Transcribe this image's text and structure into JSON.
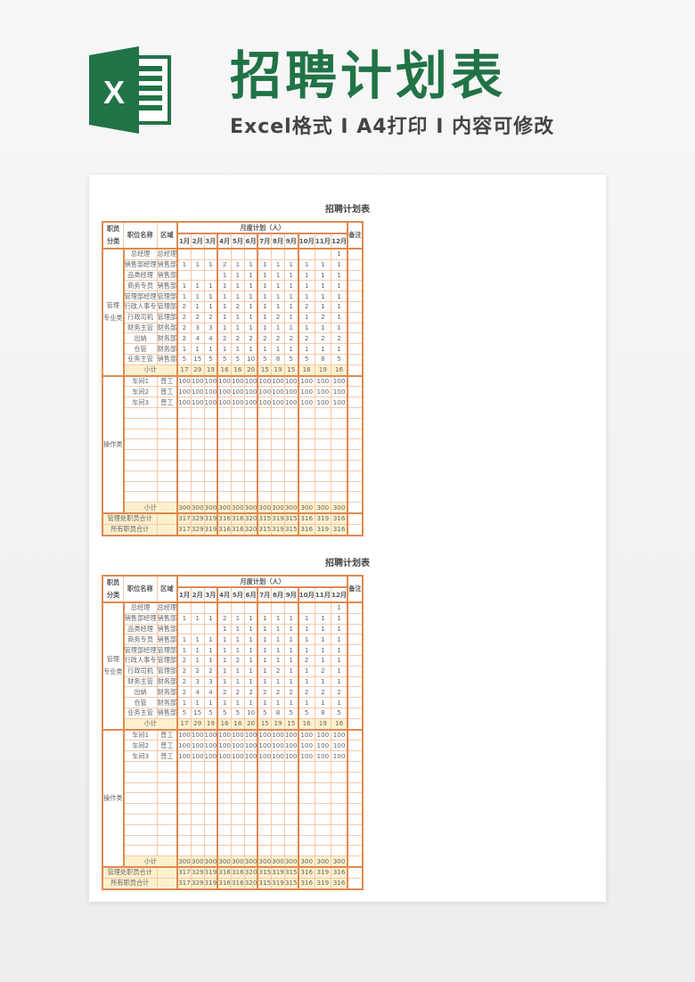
{
  "banner": {
    "logo_letter": "X",
    "headline": "招聘计划表",
    "subline": "Excel格式 I A4打印 I 内容可修改",
    "brand_color": "#217346"
  },
  "colors": {
    "border": "#e08a50",
    "grid": "#f5c9a8",
    "subtotal_fill": "#fdf1cd"
  },
  "sheets": [
    {
      "title": "招聘计划表",
      "header": {
        "category_l1": "职员",
        "category_l2": "分类",
        "position": "职位名称",
        "region": "区域",
        "monthly": "月度计划（人）",
        "months": [
          "1月",
          "2月",
          "3月",
          "4月",
          "5月",
          "6月",
          "7月",
          "8月",
          "9月",
          "10月",
          "11月",
          "12月"
        ],
        "remark": "备注"
      },
      "mgmt": {
        "category_l1": "管理",
        "category_l2": "专业类",
        "rows": [
          {
            "position": "总经理",
            "region": "总经理",
            "values": [
              "",
              "",
              "",
              "",
              "",
              "",
              "",
              "",
              "",
              "",
              "",
              "1"
            ]
          },
          {
            "position": "销售部经理",
            "region": "销售部",
            "values": [
              "1",
              "1",
              "1",
              "2",
              "1",
              "1",
              "1",
              "1",
              "1",
              "1",
              "1",
              "1"
            ]
          },
          {
            "position": "品类经理",
            "region": "销售部",
            "values": [
              "",
              "",
              "",
              "1",
              "1",
              "1",
              "1",
              "1",
              "1",
              "1",
              "1",
              "1"
            ]
          },
          {
            "position": "商务专员",
            "region": "销售部",
            "values": [
              "1",
              "1",
              "1",
              "1",
              "1",
              "1",
              "1",
              "1",
              "1",
              "1",
              "1",
              "1"
            ]
          },
          {
            "position": "管理部经理",
            "region": "管理部",
            "values": [
              "1",
              "1",
              "1",
              "1",
              "1",
              "1",
              "1",
              "1",
              "1",
              "1",
              "1",
              "1"
            ]
          },
          {
            "position": "行政人事专",
            "region": "管理部",
            "values": [
              "2",
              "1",
              "1",
              "1",
              "2",
              "1",
              "1",
              "1",
              "1",
              "2",
              "1",
              "1"
            ]
          },
          {
            "position": "行政司机",
            "region": "管理部",
            "values": [
              "2",
              "2",
              "2",
              "1",
              "1",
              "1",
              "1",
              "2",
              "1",
              "1",
              "2",
              "1"
            ]
          },
          {
            "position": "财务主管",
            "region": "财务部",
            "values": [
              "2",
              "3",
              "3",
              "1",
              "1",
              "1",
              "1",
              "1",
              "1",
              "1",
              "1",
              "1"
            ]
          },
          {
            "position": "出纳",
            "region": "财务部",
            "values": [
              "2",
              "4",
              "4",
              "2",
              "2",
              "2",
              "2",
              "2",
              "2",
              "2",
              "2",
              "2"
            ]
          },
          {
            "position": "仓管",
            "region": "财务部",
            "values": [
              "1",
              "1",
              "1",
              "1",
              "1",
              "1",
              "1",
              "1",
              "1",
              "1",
              "1",
              "1"
            ]
          },
          {
            "position": "业务主管",
            "region": "销售部",
            "values": [
              "5",
              "15",
              "5",
              "5",
              "5",
              "10",
              "5",
              "8",
              "5",
              "5",
              "8",
              "5"
            ]
          }
        ],
        "subtotal_label": "小计",
        "subtotal": [
          "17",
          "29",
          "19",
          "16",
          "16",
          "20",
          "15",
          "19",
          "15",
          "16",
          "19",
          "16"
        ]
      },
      "ops": {
        "category": "操作类",
        "rows": [
          {
            "position": "车间1",
            "region": "普工",
            "values": [
              "100",
              "100",
              "100",
              "100",
              "100",
              "100",
              "100",
              "100",
              "100",
              "100",
              "100",
              "100"
            ]
          },
          {
            "position": "车间2",
            "region": "普工",
            "values": [
              "100",
              "100",
              "100",
              "100",
              "100",
              "100",
              "100",
              "100",
              "100",
              "100",
              "100",
              "100"
            ]
          },
          {
            "position": "车间3",
            "region": "普工",
            "values": [
              "100",
              "100",
              "100",
              "100",
              "100",
              "100",
              "100",
              "100",
              "100",
              "100",
              "100",
              "100"
            ]
          },
          {
            "position": "",
            "region": "",
            "values": [
              "",
              "",
              "",
              "",
              "",
              "",
              "",
              "",
              "",
              "",
              "",
              ""
            ]
          },
          {
            "position": "",
            "region": "",
            "values": [
              "",
              "",
              "",
              "",
              "",
              "",
              "",
              "",
              "",
              "",
              "",
              ""
            ]
          },
          {
            "position": "",
            "region": "",
            "values": [
              "",
              "",
              "",
              "",
              "",
              "",
              "",
              "",
              "",
              "",
              "",
              ""
            ]
          },
          {
            "position": "",
            "region": "",
            "values": [
              "",
              "",
              "",
              "",
              "",
              "",
              "",
              "",
              "",
              "",
              "",
              ""
            ]
          },
          {
            "position": "",
            "region": "",
            "values": [
              "",
              "",
              "",
              "",
              "",
              "",
              "",
              "",
              "",
              "",
              "",
              ""
            ]
          },
          {
            "position": "",
            "region": "",
            "values": [
              "",
              "",
              "",
              "",
              "",
              "",
              "",
              "",
              "",
              "",
              "",
              ""
            ]
          },
          {
            "position": "",
            "region": "",
            "values": [
              "",
              "",
              "",
              "",
              "",
              "",
              "",
              "",
              "",
              "",
              "",
              ""
            ]
          },
          {
            "position": "",
            "region": "",
            "values": [
              "",
              "",
              "",
              "",
              "",
              "",
              "",
              "",
              "",
              "",
              "",
              ""
            ]
          },
          {
            "position": "",
            "region": "",
            "values": [
              "",
              "",
              "",
              "",
              "",
              "",
              "",
              "",
              "",
              "",
              "",
              ""
            ]
          }
        ],
        "subtotal_label": "小计",
        "subtotal": [
          "300",
          "300",
          "300",
          "300",
          "300",
          "300",
          "300",
          "300",
          "300",
          "300",
          "300",
          "300"
        ]
      },
      "totals": [
        {
          "label": "管理处职员合计",
          "values": [
            "317",
            "329",
            "319",
            "316",
            "316",
            "320",
            "315",
            "319",
            "315",
            "316",
            "319",
            "316"
          ]
        },
        {
          "label": "所有职员合计",
          "values": [
            "317",
            "329",
            "319",
            "316",
            "316",
            "320",
            "315",
            "319",
            "315",
            "316",
            "319",
            "316"
          ]
        }
      ]
    },
    {
      "title": "招聘计划表",
      "header": {
        "category_l1": "职员",
        "category_l2": "分类",
        "position": "职位名称",
        "region": "区域",
        "monthly": "月度计划（人）",
        "months": [
          "1月",
          "2月",
          "3月",
          "4月",
          "5月",
          "6月",
          "7月",
          "8月",
          "9月",
          "10月",
          "11月",
          "12月"
        ],
        "remark": "备注"
      },
      "mgmt": {
        "category_l1": "管理",
        "category_l2": "专业类",
        "rows": [
          {
            "position": "总经理",
            "region": "总经理",
            "values": [
              "",
              "",
              "",
              "",
              "",
              "",
              "",
              "",
              "",
              "",
              "",
              "1"
            ]
          },
          {
            "position": "销售部经理",
            "region": "销售部",
            "values": [
              "1",
              "1",
              "1",
              "2",
              "1",
              "1",
              "1",
              "1",
              "1",
              "1",
              "1",
              "1"
            ]
          },
          {
            "position": "品类经理",
            "region": "销售部",
            "values": [
              "",
              "",
              "",
              "1",
              "1",
              "1",
              "1",
              "1",
              "1",
              "1",
              "1",
              "1"
            ]
          },
          {
            "position": "商务专员",
            "region": "销售部",
            "values": [
              "1",
              "1",
              "1",
              "1",
              "1",
              "1",
              "1",
              "1",
              "1",
              "1",
              "1",
              "1"
            ]
          },
          {
            "position": "管理部经理",
            "region": "管理部",
            "values": [
              "1",
              "1",
              "1",
              "1",
              "1",
              "1",
              "1",
              "1",
              "1",
              "1",
              "1",
              "1"
            ]
          },
          {
            "position": "行政人事专",
            "region": "管理部",
            "values": [
              "2",
              "1",
              "1",
              "1",
              "2",
              "1",
              "1",
              "1",
              "1",
              "2",
              "1",
              "1"
            ]
          },
          {
            "position": "行政司机",
            "region": "管理部",
            "values": [
              "2",
              "2",
              "2",
              "1",
              "1",
              "1",
              "1",
              "2",
              "1",
              "1",
              "2",
              "1"
            ]
          },
          {
            "position": "财务主管",
            "region": "财务部",
            "values": [
              "2",
              "3",
              "3",
              "1",
              "1",
              "1",
              "1",
              "1",
              "1",
              "1",
              "1",
              "1"
            ]
          },
          {
            "position": "出纳",
            "region": "财务部",
            "values": [
              "2",
              "4",
              "4",
              "2",
              "2",
              "2",
              "2",
              "2",
              "2",
              "2",
              "2",
              "2"
            ]
          },
          {
            "position": "仓管",
            "region": "财务部",
            "values": [
              "1",
              "1",
              "1",
              "1",
              "1",
              "1",
              "1",
              "1",
              "1",
              "1",
              "1",
              "1"
            ]
          },
          {
            "position": "业务主管",
            "region": "销售部",
            "values": [
              "5",
              "15",
              "5",
              "5",
              "5",
              "10",
              "5",
              "8",
              "5",
              "5",
              "8",
              "5"
            ]
          }
        ],
        "subtotal_label": "小计",
        "subtotal": [
          "17",
          "29",
          "19",
          "16",
          "16",
          "20",
          "15",
          "19",
          "15",
          "16",
          "19",
          "16"
        ]
      },
      "ops": {
        "category": "操作类",
        "rows": [
          {
            "position": "车间1",
            "region": "普工",
            "values": [
              "100",
              "100",
              "100",
              "100",
              "100",
              "100",
              "100",
              "100",
              "100",
              "100",
              "100",
              "100"
            ]
          },
          {
            "position": "车间2",
            "region": "普工",
            "values": [
              "100",
              "100",
              "100",
              "100",
              "100",
              "100",
              "100",
              "100",
              "100",
              "100",
              "100",
              "100"
            ]
          },
          {
            "position": "车间3",
            "region": "普工",
            "values": [
              "100",
              "100",
              "100",
              "100",
              "100",
              "100",
              "100",
              "100",
              "100",
              "100",
              "100",
              "100"
            ]
          },
          {
            "position": "",
            "region": "",
            "values": [
              "",
              "",
              "",
              "",
              "",
              "",
              "",
              "",
              "",
              "",
              "",
              ""
            ]
          },
          {
            "position": "",
            "region": "",
            "values": [
              "",
              "",
              "",
              "",
              "",
              "",
              "",
              "",
              "",
              "",
              "",
              ""
            ]
          },
          {
            "position": "",
            "region": "",
            "values": [
              "",
              "",
              "",
              "",
              "",
              "",
              "",
              "",
              "",
              "",
              "",
              ""
            ]
          },
          {
            "position": "",
            "region": "",
            "values": [
              "",
              "",
              "",
              "",
              "",
              "",
              "",
              "",
              "",
              "",
              "",
              ""
            ]
          },
          {
            "position": "",
            "region": "",
            "values": [
              "",
              "",
              "",
              "",
              "",
              "",
              "",
              "",
              "",
              "",
              "",
              ""
            ]
          },
          {
            "position": "",
            "region": "",
            "values": [
              "",
              "",
              "",
              "",
              "",
              "",
              "",
              "",
              "",
              "",
              "",
              ""
            ]
          },
          {
            "position": "",
            "region": "",
            "values": [
              "",
              "",
              "",
              "",
              "",
              "",
              "",
              "",
              "",
              "",
              "",
              ""
            ]
          },
          {
            "position": "",
            "region": "",
            "values": [
              "",
              "",
              "",
              "",
              "",
              "",
              "",
              "",
              "",
              "",
              "",
              ""
            ]
          },
          {
            "position": "",
            "region": "",
            "values": [
              "",
              "",
              "",
              "",
              "",
              "",
              "",
              "",
              "",
              "",
              "",
              ""
            ]
          }
        ],
        "subtotal_label": "小计",
        "subtotal": [
          "300",
          "300",
          "300",
          "300",
          "300",
          "300",
          "300",
          "300",
          "300",
          "300",
          "300",
          "300"
        ]
      },
      "totals": [
        {
          "label": "管理处职员合计",
          "values": [
            "317",
            "329",
            "319",
            "316",
            "316",
            "320",
            "315",
            "319",
            "315",
            "316",
            "319",
            "316"
          ]
        },
        {
          "label": "所有职员合计",
          "values": [
            "317",
            "329",
            "319",
            "316",
            "316",
            "320",
            "315",
            "319",
            "315",
            "316",
            "319",
            "316"
          ]
        }
      ]
    }
  ]
}
